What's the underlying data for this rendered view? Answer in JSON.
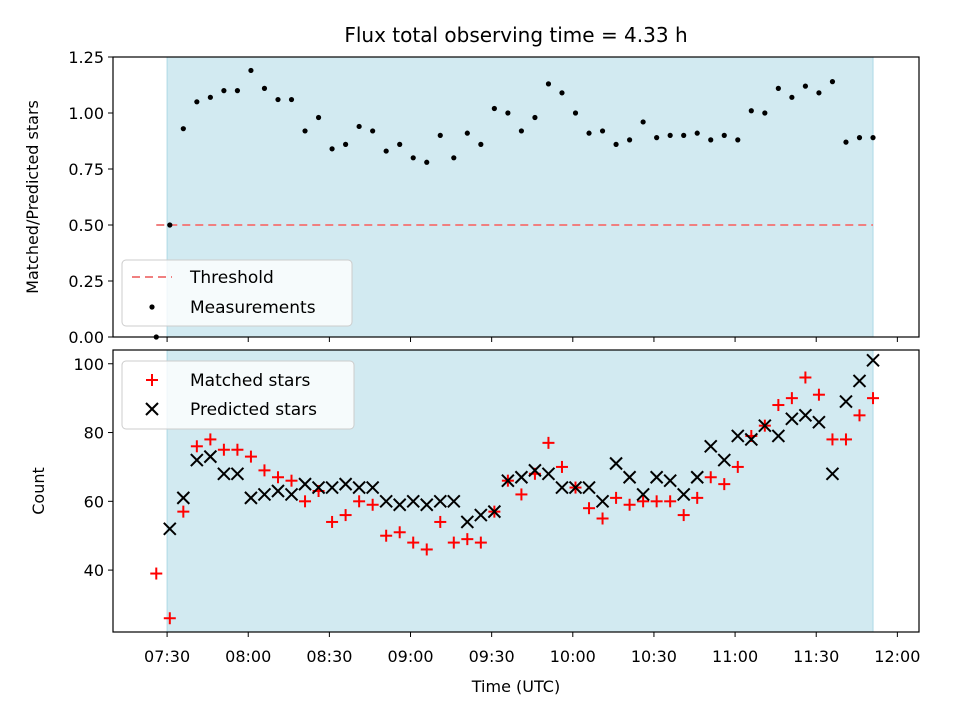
{
  "chart_data": [
    {
      "type": "scatter",
      "title": "Flux total observing time = 4.33 h",
      "xlabel": "",
      "ylabel": "Matched/Predicted stars",
      "ylim": [
        0,
        1.25
      ],
      "yticks": [
        "0.00",
        "0.25",
        "0.50",
        "0.75",
        "1.00",
        "1.25"
      ],
      "yticks_values": [
        0,
        0.25,
        0.5,
        0.75,
        1.0,
        1.25
      ],
      "shaded_interval": [
        "07:30",
        "11:51"
      ],
      "shaded_color": "#add8e6",
      "legend_position": "lower-left",
      "threshold": {
        "name": "Threshold",
        "value": 0.5,
        "x_start": "07:26",
        "x_end": "11:51",
        "color": "#f08080",
        "style": "dashed"
      },
      "series": [
        {
          "name": "Measurements",
          "color": "#000000",
          "marker": "dot",
          "x": [
            "07:26",
            "07:31",
            "07:36",
            "07:41",
            "07:46",
            "07:51",
            "07:56",
            "08:01",
            "08:06",
            "08:11",
            "08:16",
            "08:21",
            "08:26",
            "08:31",
            "08:36",
            "08:41",
            "08:46",
            "08:51",
            "08:56",
            "09:01",
            "09:06",
            "09:11",
            "09:16",
            "09:21",
            "09:26",
            "09:31",
            "09:36",
            "09:41",
            "09:46",
            "09:51",
            "09:56",
            "10:01",
            "10:06",
            "10:11",
            "10:16",
            "10:21",
            "10:26",
            "10:31",
            "10:36",
            "10:41",
            "10:46",
            "10:51",
            "10:56",
            "11:01",
            "11:06",
            "11:11",
            "11:16",
            "11:21",
            "11:26",
            "11:31",
            "11:36",
            "11:41",
            "11:46",
            "11:51"
          ],
          "y": [
            0.0,
            0.5,
            0.93,
            1.05,
            1.07,
            1.1,
            1.1,
            1.19,
            1.11,
            1.06,
            1.06,
            0.92,
            0.98,
            0.84,
            0.86,
            0.94,
            0.92,
            0.83,
            0.86,
            0.8,
            0.78,
            0.9,
            0.8,
            0.91,
            0.86,
            1.02,
            1.0,
            0.92,
            0.98,
            1.13,
            1.09,
            1.0,
            0.91,
            0.92,
            0.86,
            0.88,
            0.96,
            0.89,
            0.9,
            0.9,
            0.91,
            0.88,
            0.9,
            0.88,
            1.01,
            1.0,
            1.11,
            1.07,
            1.12,
            1.09,
            1.14,
            0.87,
            0.89,
            0.89
          ]
        }
      ]
    },
    {
      "type": "scatter",
      "title": "",
      "xlabel": "Time (UTC)",
      "ylabel": "Count",
      "xlim": [
        "07:10",
        "12:08"
      ],
      "ylim": [
        22,
        104
      ],
      "xticks": [
        "07:30",
        "08:00",
        "08:30",
        "09:00",
        "09:30",
        "10:00",
        "10:30",
        "11:00",
        "11:30",
        "12:00"
      ],
      "yticks": [
        "40",
        "60",
        "80",
        "100"
      ],
      "yticks_values": [
        40,
        60,
        80,
        100
      ],
      "shaded_interval": [
        "07:30",
        "11:51"
      ],
      "shaded_color": "#add8e6",
      "legend_position": "upper-left",
      "series": [
        {
          "name": "Matched stars",
          "color": "#ff0000",
          "marker": "plus",
          "x": [
            "07:26",
            "07:31",
            "07:36",
            "07:41",
            "07:46",
            "07:51",
            "07:56",
            "08:01",
            "08:06",
            "08:11",
            "08:16",
            "08:21",
            "08:26",
            "08:31",
            "08:36",
            "08:41",
            "08:46",
            "08:51",
            "08:56",
            "09:01",
            "09:06",
            "09:11",
            "09:16",
            "09:21",
            "09:26",
            "09:31",
            "09:36",
            "09:41",
            "09:46",
            "09:51",
            "09:56",
            "10:01",
            "10:06",
            "10:11",
            "10:16",
            "10:21",
            "10:26",
            "10:31",
            "10:36",
            "10:41",
            "10:46",
            "10:51",
            "10:56",
            "11:01",
            "11:06",
            "11:11",
            "11:16",
            "11:21",
            "11:26",
            "11:31",
            "11:36",
            "11:41",
            "11:46",
            "11:51"
          ],
          "y": [
            39,
            26,
            57,
            76,
            78,
            75,
            75,
            73,
            69,
            67,
            66,
            60,
            63,
            54,
            56,
            60,
            59,
            50,
            51,
            48,
            46,
            54,
            48,
            49,
            48,
            57,
            66,
            62,
            68,
            77,
            70,
            64,
            58,
            55,
            61,
            59,
            60,
            60,
            60,
            56,
            61,
            67,
            65,
            70,
            79,
            82,
            88,
            90,
            96,
            91,
            78,
            78,
            85,
            90
          ]
        },
        {
          "name": "Predicted stars",
          "color": "#000000",
          "marker": "cross",
          "x": [
            "07:31",
            "07:36",
            "07:41",
            "07:46",
            "07:51",
            "07:56",
            "08:01",
            "08:06",
            "08:11",
            "08:16",
            "08:21",
            "08:26",
            "08:31",
            "08:36",
            "08:41",
            "08:46",
            "08:51",
            "08:56",
            "09:01",
            "09:06",
            "09:11",
            "09:16",
            "09:21",
            "09:26",
            "09:31",
            "09:36",
            "09:41",
            "09:46",
            "09:51",
            "09:56",
            "10:01",
            "10:06",
            "10:11",
            "10:16",
            "10:21",
            "10:26",
            "10:31",
            "10:36",
            "10:41",
            "10:46",
            "10:51",
            "10:56",
            "11:01",
            "11:06",
            "11:11",
            "11:16",
            "11:21",
            "11:26",
            "11:31",
            "11:36",
            "11:41",
            "11:46",
            "11:51"
          ],
          "y": [
            52,
            61,
            72,
            73,
            68,
            68,
            61,
            62,
            63,
            62,
            65,
            64,
            64,
            65,
            64,
            64,
            60,
            59,
            60,
            59,
            60,
            60,
            54,
            56,
            57,
            66,
            67,
            69,
            68,
            64,
            64,
            64,
            60,
            71,
            67,
            62,
            67,
            66,
            62,
            67,
            76,
            72,
            79,
            78,
            82,
            79,
            84,
            85,
            83,
            68,
            89,
            95,
            101
          ]
        }
      ]
    }
  ]
}
